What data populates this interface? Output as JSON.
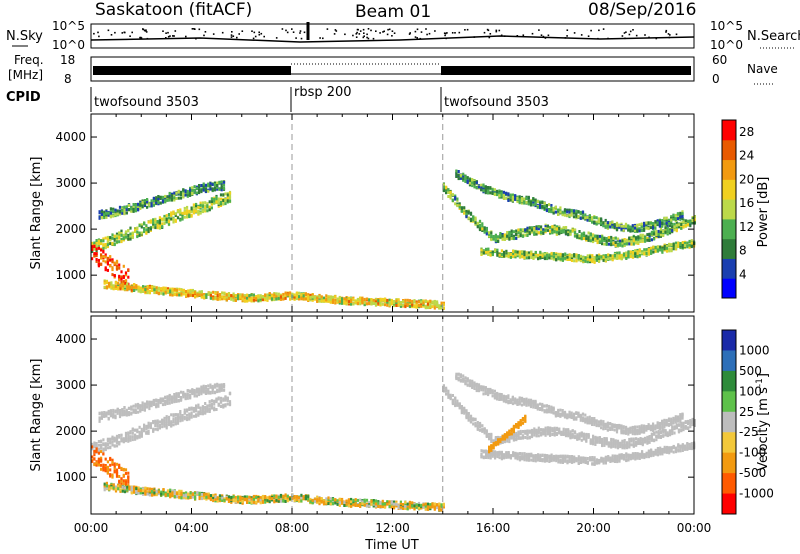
{
  "header": {
    "station": "Saskatoon (fitACF)",
    "beam": "Beam 01",
    "date": "08/Sep/2016"
  },
  "noise_panel": {
    "left_label": "N.Sky",
    "right_label": "N.Search",
    "left_ticks": [
      "10^5",
      "10^0"
    ],
    "right_ticks": [
      "10^5",
      "10^0"
    ]
  },
  "freq_panel": {
    "left_label_1": "Freq.",
    "left_label_2": "[MHz]",
    "right_label": "Nave",
    "left_ticks": [
      "18",
      "8"
    ],
    "right_ticks": [
      "60",
      "0"
    ]
  },
  "cpid_panel": {
    "label": "CPID",
    "segments": [
      {
        "name": "twofsound 3503",
        "start_hour": 0
      },
      {
        "name": "rbsp 200",
        "start_hour": 8
      },
      {
        "name": "twofsound 3503",
        "start_hour": 14
      }
    ]
  },
  "x_axis": {
    "title": "Time UT",
    "ticks": [
      "00:00",
      "04:00",
      "08:00",
      "12:00",
      "16:00",
      "20:00",
      "00:00"
    ],
    "range_hours": [
      0,
      24
    ]
  },
  "power_colorbar": {
    "title": "Power [dB]",
    "ticks": [
      "28",
      "24",
      "20",
      "16",
      "12",
      "8",
      "4"
    ],
    "colors": [
      "#0000ff",
      "#1a3fb0",
      "#2f7c3a",
      "#4caf50",
      "#bcd94a",
      "#f0d020",
      "#f29a10",
      "#e85a00",
      "#ff0000"
    ]
  },
  "velocity_colorbar": {
    "title": "Velocity [m s-1]",
    "title_parts": [
      "Velocity [m s",
      "-1",
      "]"
    ],
    "ticks": [
      "1000",
      "500",
      "100",
      "25",
      "-25",
      "-100",
      "-500",
      "-1000"
    ],
    "colors": [
      "#1a2aa8",
      "#2d6fb8",
      "#2e8b3a",
      "#5ec14a",
      "#bdbdbd",
      "#f3c83a",
      "#f29a10",
      "#ff5a00",
      "#ff0000"
    ]
  },
  "chart_data": [
    {
      "type": "heatmap",
      "panel": "power",
      "ylabel": "Slant Range [km]",
      "xlabel": "Time UT",
      "xlim": [
        0,
        24
      ],
      "ylim": [
        200,
        4500
      ],
      "yticks": [
        "1000",
        "2000",
        "3000",
        "4000"
      ],
      "colorbar_label": "Power [dB]",
      "clim": [
        0,
        30
      ],
      "features": [
        {
          "name": "band A",
          "t": [
            0.0,
            1.0,
            2.0,
            3.0,
            4.0,
            5.0,
            5.5
          ],
          "range": [
            1600,
            1800,
            2000,
            2200,
            2400,
            2600,
            2700
          ],
          "width": 250,
          "power": 14
        },
        {
          "name": "band B",
          "t": [
            0.3,
            1.5,
            2.5,
            3.5,
            4.5,
            5.3
          ],
          "range": [
            2300,
            2450,
            2600,
            2750,
            2900,
            2950
          ],
          "width": 180,
          "power": 10
        },
        {
          "name": "early blob",
          "t": [
            0.0,
            0.5,
            1.0,
            1.5
          ],
          "range": [
            1500,
            1300,
            1100,
            900
          ],
          "width": 400,
          "power": 26
        },
        {
          "name": "low band",
          "t": [
            0.5,
            2.0,
            4.0,
            6.0,
            8.0,
            10.0,
            12.0,
            14.0
          ],
          "range": [
            800,
            700,
            600,
            500,
            550,
            450,
            400,
            350
          ],
          "width": 150,
          "power": 18
        },
        {
          "name": "afternoon arc 1",
          "t": [
            14.0,
            15.0,
            16.0,
            17.0,
            18.0,
            19.0,
            20.0,
            21.0,
            22.0,
            23.0,
            24.0
          ],
          "range": [
            2900,
            2300,
            1800,
            1900,
            2000,
            1950,
            1800,
            1700,
            1800,
            2000,
            2200
          ],
          "width": 180,
          "power": 12
        },
        {
          "name": "afternoon arc 2",
          "t": [
            14.5,
            15.5,
            16.5,
            17.5,
            18.5,
            19.5,
            20.5,
            21.5,
            22.5,
            23.5
          ],
          "range": [
            3200,
            2900,
            2700,
            2600,
            2400,
            2300,
            2100,
            2000,
            2100,
            2300
          ],
          "width": 160,
          "power": 10
        },
        {
          "name": "late band",
          "t": [
            15.5,
            17.0,
            18.5,
            20.0,
            21.5,
            23.0,
            24.0
          ],
          "range": [
            1500,
            1450,
            1400,
            1350,
            1450,
            1600,
            1700
          ],
          "width": 150,
          "power": 14
        }
      ]
    },
    {
      "type": "heatmap",
      "panel": "velocity",
      "ylabel": "Slant Range [km]",
      "xlabel": "Time UT",
      "xlim": [
        0,
        24
      ],
      "ylim": [
        200,
        4500
      ],
      "yticks": [
        "1000",
        "2000",
        "3000",
        "4000"
      ],
      "colorbar_label": "Velocity [m s-1]",
      "clim": [
        -1000,
        1000
      ],
      "features": [
        {
          "name": "band A",
          "t": [
            0.0,
            1.0,
            2.0,
            3.0,
            4.0,
            5.0,
            5.5
          ],
          "range": [
            1600,
            1800,
            2000,
            2200,
            2400,
            2600,
            2700
          ],
          "width": 250,
          "velocity": 0
        },
        {
          "name": "band B",
          "t": [
            0.3,
            1.5,
            2.5,
            3.5,
            4.5,
            5.3
          ],
          "range": [
            2300,
            2450,
            2600,
            2750,
            2900,
            2950
          ],
          "width": 180,
          "velocity": 0
        },
        {
          "name": "early blob",
          "t": [
            0.0,
            0.5,
            1.0,
            1.5
          ],
          "range": [
            1500,
            1300,
            1100,
            900
          ],
          "width": 400,
          "velocity": -600
        },
        {
          "name": "low band",
          "t": [
            0.5,
            2.0,
            4.0,
            6.0,
            8.0,
            10.0,
            12.0,
            14.0
          ],
          "range": [
            800,
            700,
            600,
            500,
            550,
            450,
            400,
            350
          ],
          "width": 150,
          "velocity": -60
        },
        {
          "name": "afternoon arc 1",
          "t": [
            14.0,
            15.0,
            16.0,
            17.0,
            18.0,
            19.0,
            20.0,
            21.0,
            22.0,
            23.0,
            24.0
          ],
          "range": [
            2900,
            2300,
            1800,
            1900,
            2000,
            1950,
            1800,
            1700,
            1800,
            2000,
            2200
          ],
          "width": 180,
          "velocity": 0
        },
        {
          "name": "afternoon arc 2",
          "t": [
            14.5,
            15.5,
            16.5,
            17.5,
            18.5,
            19.5,
            20.5,
            21.5,
            22.5,
            23.5
          ],
          "range": [
            3200,
            2900,
            2700,
            2600,
            2400,
            2300,
            2100,
            2000,
            2100,
            2300
          ],
          "width": 160,
          "velocity": 0
        },
        {
          "name": "late band",
          "t": [
            15.5,
            17.0,
            18.5,
            20.0,
            21.5,
            23.0,
            24.0
          ],
          "range": [
            1500,
            1450,
            1400,
            1350,
            1450,
            1600,
            1700
          ],
          "width": 150,
          "velocity": 0
        },
        {
          "name": "orange streak",
          "t": [
            15.8,
            16.5,
            17.3
          ],
          "range": [
            1600,
            1900,
            2300
          ],
          "width": 120,
          "velocity": -300
        }
      ]
    }
  ]
}
